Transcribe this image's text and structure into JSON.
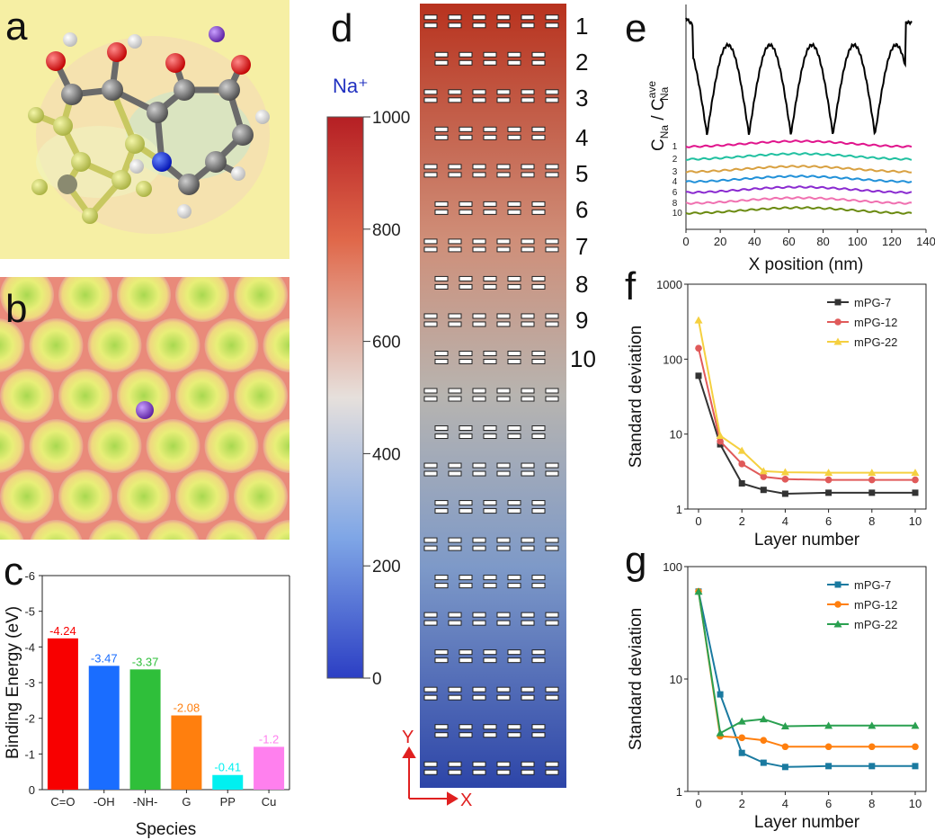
{
  "panel_labels": [
    "a",
    "b",
    "c",
    "d",
    "e",
    "f",
    "g"
  ],
  "colors": {
    "c_bars": [
      "#f80000",
      "#1a6dff",
      "#2fbf3a",
      "#ff7f0e",
      "#00f0f0",
      "#ff80ee"
    ]
  },
  "colorbar": {
    "title": "Na⁺",
    "ticks": [
      "1000",
      "800",
      "600",
      "400",
      "200",
      "0"
    ]
  },
  "layer_numbers": [
    "1",
    "2",
    "3",
    "4",
    "5",
    "6",
    "7",
    "8",
    "9",
    "10"
  ],
  "axis_XY": {
    "y": "Y",
    "x": "X"
  },
  "chart_data": [
    {
      "panel": "c",
      "type": "bar",
      "categories": [
        "C=O",
        "-OH",
        "-NH-",
        "G",
        "PP",
        "Cu"
      ],
      "values": [
        -4.24,
        -3.47,
        -3.37,
        -2.08,
        -0.41,
        -1.2
      ],
      "value_labels": [
        "-4.24",
        "-3.47",
        "-3.37",
        "-2.08",
        "-0.41",
        "-1.2"
      ],
      "ylim": [
        0,
        -6
      ],
      "yticks": [
        "0",
        "-1",
        "-2",
        "-3",
        "-4",
        "-5",
        "-6"
      ],
      "xlabel": "Species",
      "ylabel": "Binding Energy (eV)"
    },
    {
      "panel": "e",
      "type": "line",
      "xlabel": "X position (nm)",
      "ylabel_main": "C",
      "ylabel_sub": "Na",
      "ylabel_sep": " / C",
      "ylabel_sup": "ave",
      "ylabel_sub2": "Na",
      "xticks": [
        "0",
        "20",
        "40",
        "60",
        "80",
        "100",
        "120",
        "140"
      ],
      "xlim": [
        0,
        140
      ],
      "series": [
        {
          "name": "1",
          "color": "#e0148c"
        },
        {
          "name": "2",
          "color": "#20c0a0"
        },
        {
          "name": "3",
          "color": "#d8a040"
        },
        {
          "name": "4",
          "color": "#2090d8"
        },
        {
          "name": "6",
          "color": "#8a2ad0"
        },
        {
          "name": "8",
          "color": "#f070b0"
        },
        {
          "name": "10",
          "color": "#6a8a10"
        }
      ]
    },
    {
      "panel": "f",
      "type": "line",
      "yscale": "log",
      "x": [
        0,
        1,
        2,
        3,
        4,
        6,
        8,
        10
      ],
      "xticks": [
        "0",
        "2",
        "4",
        "6",
        "8",
        "10"
      ],
      "yticks": [
        "1",
        "10",
        "100",
        "1000"
      ],
      "ylim": [
        1,
        1000
      ],
      "xlabel": "Layer number",
      "ylabel": "Standard deviation",
      "series": [
        {
          "name": "mPG-7",
          "color": "#333333",
          "marker": "square",
          "values": [
            60,
            7.3,
            2.2,
            1.8,
            1.6,
            1.65,
            1.65,
            1.65
          ]
        },
        {
          "name": "mPG-12",
          "color": "#e05a5a",
          "marker": "circle",
          "values": [
            140,
            8,
            4,
            2.7,
            2.5,
            2.45,
            2.45,
            2.45
          ]
        },
        {
          "name": "mPG-22",
          "color": "#f5d040",
          "marker": "triangle",
          "values": [
            330,
            9.5,
            6,
            3.2,
            3.1,
            3.05,
            3.05,
            3.05
          ]
        }
      ]
    },
    {
      "panel": "g",
      "type": "line",
      "yscale": "log",
      "x": [
        0,
        1,
        2,
        3,
        4,
        6,
        8,
        10
      ],
      "xticks": [
        "0",
        "2",
        "4",
        "6",
        "8",
        "10"
      ],
      "yticks": [
        "1",
        "10",
        "100"
      ],
      "ylim": [
        1,
        100
      ],
      "xlabel": "Layer number",
      "ylabel": "Standard deviation",
      "series": [
        {
          "name": "mPG-7",
          "color": "#1a7aa0",
          "marker": "square",
          "values": [
            60,
            7.3,
            2.2,
            1.8,
            1.65,
            1.68,
            1.68,
            1.68
          ]
        },
        {
          "name": "mPG-12",
          "color": "#ff7f0e",
          "marker": "circle",
          "values": [
            60,
            3.1,
            3.0,
            2.85,
            2.5,
            2.5,
            2.5,
            2.5
          ]
        },
        {
          "name": "mPG-22",
          "color": "#2aa050",
          "marker": "triangle",
          "values": [
            60,
            3.3,
            4.2,
            4.4,
            3.8,
            3.85,
            3.85,
            3.85
          ]
        }
      ]
    }
  ]
}
